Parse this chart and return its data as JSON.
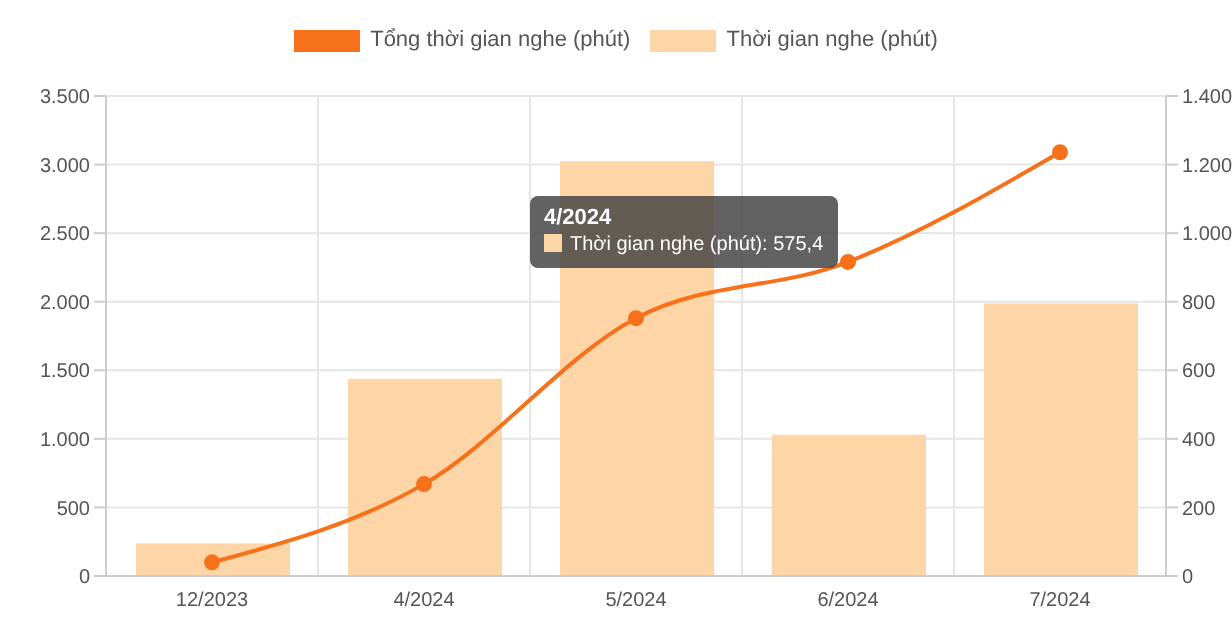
{
  "chart_data": {
    "type": "bar",
    "categories": [
      "12/2023",
      "4/2024",
      "5/2024",
      "6/2024",
      "7/2024"
    ],
    "series": [
      {
        "name": "Tổng thời gian nghe (phút)",
        "type": "line",
        "color": "#f7711b",
        "values": [
          100,
          670,
          1880,
          2290,
          3090
        ]
      },
      {
        "name": "Thời gian nghe (phút)",
        "type": "bar",
        "axis": "y2",
        "color": "#fdd5a6",
        "values": [
          95,
          575.4,
          1210,
          412,
          795
        ]
      }
    ],
    "ylim": [
      0,
      3500
    ],
    "yticks": [
      0,
      500,
      {
        "value": 1000,
        "label": "1.000"
      },
      {
        "value": 1500,
        "label": "1.500"
      },
      {
        "value": 2000,
        "label": "2.000"
      },
      {
        "value": 2500,
        "label": "2.500"
      },
      {
        "value": 3000,
        "label": "3.000"
      },
      {
        "value": 3500,
        "label": "3.500"
      }
    ],
    "y2lim": [
      0,
      1400
    ],
    "y2ticks": [
      0,
      200,
      400,
      600,
      800,
      {
        "value": 1000,
        "label": "1.000"
      },
      {
        "value": 1200,
        "label": "1.200"
      },
      {
        "value": 1400,
        "label": "1.400"
      }
    ],
    "grid": true,
    "legend": "top",
    "marker": "circle",
    "annotations": [
      "4/2024",
      "Thời gian nghe (phút): 575,4"
    ]
  }
}
